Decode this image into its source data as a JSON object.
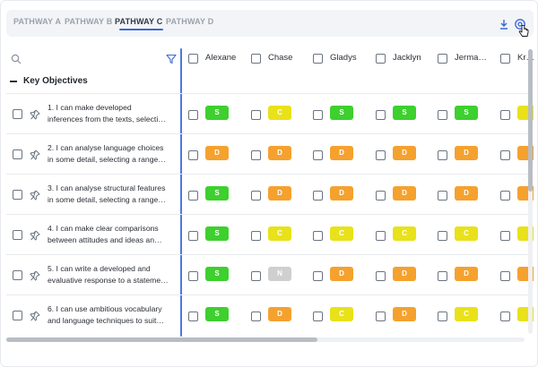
{
  "tabs": [
    {
      "label": "PATHWAY A",
      "active": false
    },
    {
      "label": "PATHWAY B",
      "active": false
    },
    {
      "label": "PATHWAY C",
      "active": true
    },
    {
      "label": "PATHWAY D",
      "active": false
    }
  ],
  "toolbar": {
    "download_icon": "download-icon",
    "settings_icon": "settings-icon"
  },
  "students": [
    "Alexane",
    "Chase",
    "Gladys",
    "Jacklyn",
    "Jerma…",
    "Kr…"
  ],
  "section": {
    "title": "Key Objectives"
  },
  "objectives": [
    {
      "line1": "1. I can make developed",
      "line2": "inferences from the texts, selecti…",
      "grades": [
        "S",
        "C",
        "S",
        "S",
        "S",
        ""
      ]
    },
    {
      "line1": "2. I can analyse language choices",
      "line2": "in some detail, selecting a range…",
      "grades": [
        "D",
        "D",
        "D",
        "D",
        "D",
        ""
      ]
    },
    {
      "line1": "3. I can analyse structural features",
      "line2": "in some detail, selecting a range…",
      "grades": [
        "S",
        "D",
        "D",
        "D",
        "D",
        ""
      ]
    },
    {
      "line1": "4. I can make clear comparisons",
      "line2": "between attitudes and ideas an…",
      "grades": [
        "S",
        "C",
        "C",
        "C",
        "C",
        ""
      ]
    },
    {
      "line1": "5. I can write a developed and",
      "line2": "evaluative response to a stateme…",
      "grades": [
        "S",
        "N",
        "D",
        "D",
        "D",
        ""
      ]
    },
    {
      "line1": "6. I can use ambitious vocabulary",
      "line2": "and language techniques to suit…",
      "grades": [
        "S",
        "D",
        "C",
        "D",
        "C",
        ""
      ]
    }
  ],
  "grade_colors": {
    "S": "#3dd02e",
    "C": "#e9e11a",
    "D": "#f5a12e",
    "N": "#cfcfcf"
  },
  "peek_colors": [
    "#e9e11a",
    "#f5a12e",
    "#f5a12e",
    "#e9e11a",
    "#f5a12e",
    "#e9e11a"
  ],
  "scroll": {
    "horizontal_fraction": 0.6,
    "vertical_fraction": 0.5
  }
}
